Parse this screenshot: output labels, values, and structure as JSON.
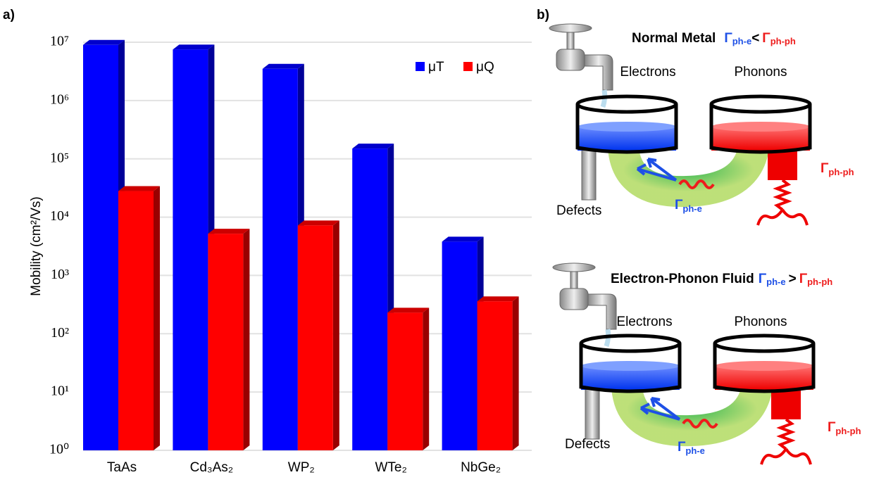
{
  "panel_labels": [
    "a)",
    "b)"
  ],
  "chart_data": {
    "type": "bar",
    "y_label": "Mobility (cm²/Vs)",
    "categories": [
      "TaAs",
      "Cd₃As₂",
      "WP₂",
      "WTe₂",
      "NbGe₂"
    ],
    "series": [
      {
        "name": "μT",
        "color": "#0000ff",
        "values": [
          9000000,
          7500000,
          3500000,
          150000,
          3800
        ]
      },
      {
        "name": "μQ",
        "color": "#ff0000",
        "values": [
          28000,
          5200,
          7200,
          230,
          360
        ]
      }
    ],
    "log_scale": true,
    "ylim": [
      1,
      10000000
    ],
    "yticks": [
      {
        "value": 1,
        "label": "10⁰"
      },
      {
        "value": 10,
        "label": "10¹"
      },
      {
        "value": 100,
        "label": "10²"
      },
      {
        "value": 1000,
        "label": "10³"
      },
      {
        "value": 10000,
        "label": "10⁴"
      },
      {
        "value": 100000,
        "label": "10⁵"
      },
      {
        "value": 1000000,
        "label": "10⁶"
      },
      {
        "value": 10000000,
        "label": "10⁷"
      }
    ],
    "grid": true,
    "legend": "upper right"
  },
  "diagram": {
    "scenes": [
      {
        "title": "Normal Metal",
        "relation": {
          "left": {
            "symbol": "Γ",
            "sub": "ph-e"
          },
          "op": "<",
          "right": {
            "symbol": "Γ",
            "sub": "ph-ph"
          }
        },
        "tanks": [
          "Electrons",
          "Phonons"
        ],
        "drain": "Defects",
        "coupling": {
          "symbol": "Γ",
          "sub": "ph-e"
        },
        "decay": {
          "symbol": "Γ",
          "sub": "ph-ph"
        }
      },
      {
        "title": "Electron-Phonon Fluid",
        "relation": {
          "left": {
            "symbol": "Γ",
            "sub": "ph-e"
          },
          "op": ">",
          "right": {
            "symbol": "Γ",
            "sub": "ph-ph"
          }
        },
        "tanks": [
          "Electrons",
          "Phonons"
        ],
        "drain": "Defects",
        "coupling": {
          "symbol": "Γ",
          "sub": "ph-e"
        },
        "decay": {
          "symbol": "Γ",
          "sub": "ph-ph"
        }
      }
    ]
  }
}
